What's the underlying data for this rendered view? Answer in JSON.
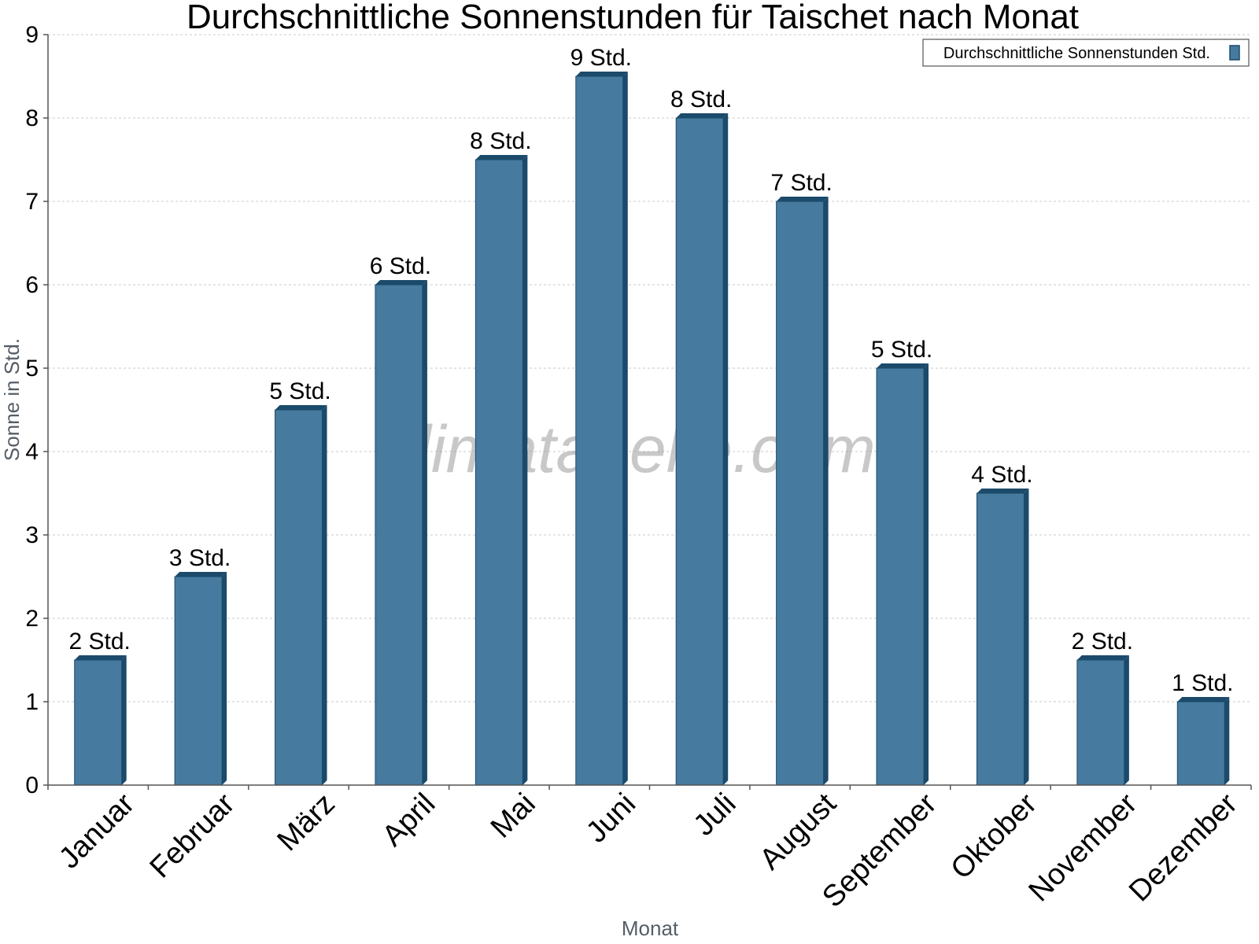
{
  "chart_data": {
    "type": "bar",
    "title": "Durchschnittliche Sonnenstunden für Taischet nach Monat",
    "xlabel": "Monat",
    "ylabel": "Sonne in Std.",
    "ylim": [
      0,
      9
    ],
    "yticks": [
      0,
      1,
      2,
      3,
      4,
      5,
      6,
      7,
      8,
      9
    ],
    "grid": true,
    "legend_position": "top-right",
    "categories": [
      "Januar",
      "Februar",
      "März",
      "April",
      "Mai",
      "Juni",
      "Juli",
      "August",
      "September",
      "Oktober",
      "November",
      "Dezember"
    ],
    "series": [
      {
        "name": "Durchschnittliche Sonnenstunden Std.",
        "values": [
          1.5,
          2.5,
          4.5,
          6,
          7.5,
          8.5,
          8,
          7,
          5,
          3.5,
          1.5,
          1
        ],
        "labels": [
          "2 Std.",
          "3 Std.",
          "5 Std.",
          "6 Std.",
          "8 Std.",
          "9 Std.",
          "8 Std.",
          "7 Std.",
          "5 Std.",
          "4 Std.",
          "2 Std.",
          "1 Std."
        ],
        "color": "#467a9e",
        "edge_color": "#1b4a6b"
      }
    ]
  },
  "watermark": "klimatabelle.com"
}
